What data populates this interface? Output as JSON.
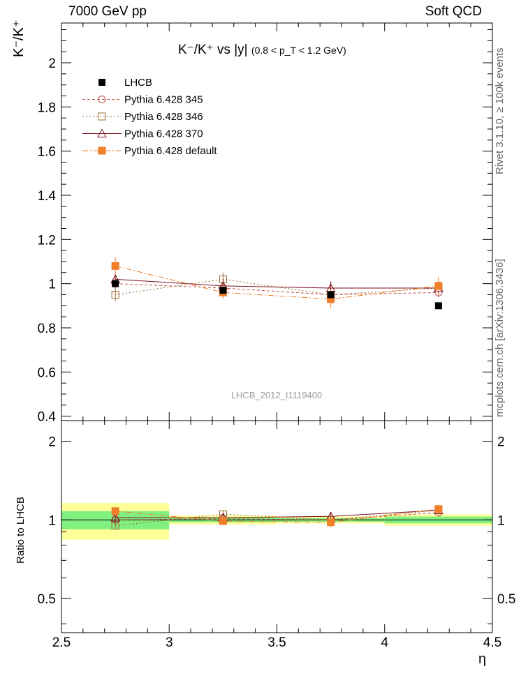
{
  "header": {
    "left": "7000 GeV pp",
    "right": "Soft QCD"
  },
  "side_text": {
    "top": "Rivet 3.1.10, ≥ 100k events",
    "bottom": "mcplots.cern.ch [arXiv:1306.3436]"
  },
  "chart_data": {
    "type": "scatter",
    "title_main": "K⁻/K⁺ vs |y|",
    "title_sub": "(0.8 < p_T < 1.2 GeV)",
    "ylabel_top": "K⁻/K⁺",
    "ylabel_bottom": "Ratio to LHCB",
    "xlabel": "η",
    "watermark": "LHCB_2012_I1119400",
    "xlim": [
      2.5,
      4.5
    ],
    "ylim_top": [
      0.38,
      2.18
    ],
    "ylim_bottom_log": [
      0.37,
      2.4
    ],
    "x_ticks": [
      "2.5",
      "3",
      "3.5",
      "4",
      "4.5"
    ],
    "y_ticks_top": [
      "0.4",
      "0.6",
      "0.8",
      "1",
      "1.2",
      "1.4",
      "1.6",
      "1.8",
      "2"
    ],
    "y_ticks_bottom": [
      "0.5",
      "1",
      "2"
    ],
    "x": [
      2.75,
      3.25,
      3.75,
      4.25
    ],
    "bins": [
      [
        2.5,
        3.0
      ],
      [
        3.0,
        3.5
      ],
      [
        3.5,
        4.0
      ],
      [
        4.0,
        4.5
      ]
    ],
    "reference": {
      "name": "LHCB",
      "values": [
        1.0,
        0.97,
        0.95,
        0.9
      ],
      "band_inner": [
        0.08,
        0.02,
        0.015,
        0.03
      ],
      "band_outer": [
        0.16,
        0.04,
        0.03,
        0.05
      ]
    },
    "series": [
      {
        "name": "Pythia 6.428 345",
        "color": "#c0504d",
        "marker": "open-circle",
        "dash": "4,3",
        "values": [
          1.0,
          0.98,
          0.95,
          0.96
        ],
        "errors": [
          0.02,
          0.02,
          0.02,
          0.02
        ]
      },
      {
        "name": "Pythia 6.428 346",
        "color": "#9c6b30",
        "marker": "open-square",
        "dash": "2,3",
        "values": [
          0.95,
          1.02,
          0.95,
          0.98
        ],
        "errors": [
          0.03,
          0.03,
          0.02,
          0.02
        ]
      },
      {
        "name": "Pythia 6.428 370",
        "color": "#7b0f1a",
        "marker": "open-triangle",
        "dash": "",
        "values": [
          1.02,
          0.99,
          0.98,
          0.98
        ],
        "errors": [
          0.03,
          0.03,
          0.03,
          0.03
        ]
      },
      {
        "name": "Pythia 6.428 default",
        "color": "#f07f2a",
        "marker": "filled-square",
        "dash": "8,3,2,3",
        "values": [
          1.08,
          0.96,
          0.93,
          0.99
        ],
        "errors": [
          0.04,
          0.03,
          0.04,
          0.04
        ]
      }
    ],
    "legend_position": "top-left",
    "band_colors": {
      "inner": "#80f080",
      "outer": "#ffff99"
    }
  }
}
